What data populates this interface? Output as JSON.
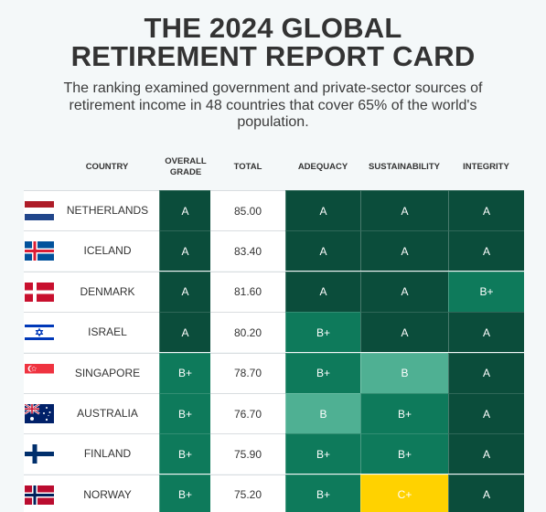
{
  "title": "THE 2024 GLOBAL RETIREMENT REPORT CARD",
  "subtitle": "The ranking examined government and private-sector sources of retirement income in 48 countries that cover 65% of the world's population.",
  "headers": {
    "country": "COUNTRY",
    "overall": "OVERALL GRADE",
    "total": "TOTAL",
    "adequacy": "ADEQUACY",
    "sustainability": "SUSTAINABILITY",
    "integrity": "INTEGRITY"
  },
  "colors": {
    "A": "#0b4d3b",
    "B+": "#0e7a5b",
    "B": "#4fb093",
    "C+": "#ffd200"
  },
  "rows": [
    {
      "country": "NETHERLANDS",
      "flag": "netherlands-flag-icon",
      "overall": "A",
      "total": "85.00",
      "adequacy": "A",
      "sustainability": "A",
      "integrity": "A"
    },
    {
      "country": "ICELAND",
      "flag": "iceland-flag-icon",
      "overall": "A",
      "total": "83.40",
      "adequacy": "A",
      "sustainability": "A",
      "integrity": "A"
    },
    {
      "country": "DENMARK",
      "flag": "denmark-flag-icon",
      "overall": "A",
      "total": "81.60",
      "adequacy": "A",
      "sustainability": "A",
      "integrity": "B+"
    },
    {
      "country": "ISRAEL",
      "flag": "israel-flag-icon",
      "overall": "A",
      "total": "80.20",
      "adequacy": "B+",
      "sustainability": "A",
      "integrity": "A"
    },
    {
      "country": "SINGAPORE",
      "flag": "singapore-flag-icon",
      "overall": "B+",
      "total": "78.70",
      "adequacy": "B+",
      "sustainability": "B",
      "integrity": "A"
    },
    {
      "country": "AUSTRALIA",
      "flag": "australia-flag-icon",
      "overall": "B+",
      "total": "76.70",
      "adequacy": "B",
      "sustainability": "B+",
      "integrity": "A"
    },
    {
      "country": "FINLAND",
      "flag": "finland-flag-icon",
      "overall": "B+",
      "total": "75.90",
      "adequacy": "B+",
      "sustainability": "B+",
      "integrity": "A"
    },
    {
      "country": "NORWAY",
      "flag": "norway-flag-icon",
      "overall": "B+",
      "total": "75.20",
      "adequacy": "B+",
      "sustainability": "C+",
      "integrity": "A"
    }
  ]
}
